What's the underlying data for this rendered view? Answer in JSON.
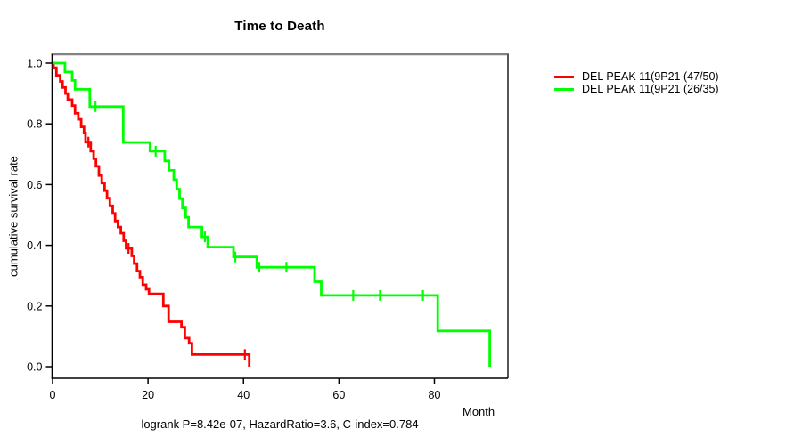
{
  "chart_data": {
    "type": "line",
    "subtype": "kaplan-meier-step-survival",
    "title": "Time to Death",
    "xlabel": "Month",
    "ylabel": "cumulative survival rate",
    "footnote": "logrank P=8.42e-07, HazardRatio=3.6, C-index=0.784",
    "stats": {
      "logrank_p": "8.42e-07",
      "hazard_ratio": "3.6",
      "c_index": "0.784"
    },
    "x_ticks": [
      0,
      20,
      40,
      60,
      80
    ],
    "y_ticks": [
      "0.0",
      "0.2",
      "0.4",
      "0.6",
      "0.8",
      "1.0"
    ],
    "xlim": [
      0,
      95.5
    ],
    "ylim": [
      0.0,
      1.0
    ],
    "grid": false,
    "legend_position": "right-outside",
    "series": [
      {
        "name": "DEL PEAK 11(9P21 (47/50)",
        "color": "#ff0000",
        "events": 47,
        "n": 50,
        "start": [
          0,
          1.0
        ],
        "drops": [
          [
            0.2,
            0.985
          ],
          [
            0.8,
            0.96
          ],
          [
            1.6,
            0.94
          ],
          [
            2.1,
            0.92
          ],
          [
            2.7,
            0.9
          ],
          [
            3.2,
            0.88
          ],
          [
            4.1,
            0.86
          ],
          [
            4.7,
            0.835
          ],
          [
            5.4,
            0.815
          ],
          [
            6.0,
            0.79
          ],
          [
            6.6,
            0.77
          ],
          [
            6.9,
            0.74
          ],
          [
            8.0,
            0.71
          ],
          [
            8.6,
            0.685
          ],
          [
            9.1,
            0.66
          ],
          [
            9.7,
            0.63
          ],
          [
            10.3,
            0.605
          ],
          [
            10.9,
            0.58
          ],
          [
            11.4,
            0.555
          ],
          [
            12.0,
            0.53
          ],
          [
            12.6,
            0.505
          ],
          [
            13.1,
            0.48
          ],
          [
            13.7,
            0.46
          ],
          [
            14.3,
            0.44
          ],
          [
            14.9,
            0.415
          ],
          [
            15.4,
            0.39
          ],
          [
            16.6,
            0.365
          ],
          [
            17.1,
            0.34
          ],
          [
            17.7,
            0.315
          ],
          [
            18.3,
            0.295
          ],
          [
            18.9,
            0.27
          ],
          [
            19.6,
            0.255
          ],
          [
            20.2,
            0.24
          ],
          [
            23.2,
            0.2
          ],
          [
            24.3,
            0.148
          ],
          [
            27.0,
            0.13
          ],
          [
            27.7,
            0.094
          ],
          [
            28.6,
            0.077
          ],
          [
            29.2,
            0.04
          ],
          [
            41.2,
            0.0
          ]
        ],
        "censors": [
          [
            7.5,
            0.74
          ],
          [
            15.9,
            0.39
          ],
          [
            40.3,
            0.04
          ]
        ]
      },
      {
        "name": "DEL PEAK 11(9P21 (26/35)",
        "color": "#00ff00",
        "events": 26,
        "n": 35,
        "start": [
          0,
          1.0
        ],
        "drops": [
          [
            2.6,
            0.971
          ],
          [
            4.1,
            0.943
          ],
          [
            4.7,
            0.914
          ],
          [
            7.8,
            0.857
          ],
          [
            14.8,
            0.739
          ],
          [
            20.4,
            0.71
          ],
          [
            23.5,
            0.678
          ],
          [
            24.4,
            0.647
          ],
          [
            25.4,
            0.616
          ],
          [
            26.0,
            0.585
          ],
          [
            26.6,
            0.554
          ],
          [
            27.2,
            0.523
          ],
          [
            27.9,
            0.492
          ],
          [
            28.5,
            0.46
          ],
          [
            31.3,
            0.428
          ],
          [
            32.5,
            0.394
          ],
          [
            37.9,
            0.362
          ],
          [
            42.8,
            0.328
          ],
          [
            54.9,
            0.28
          ],
          [
            56.3,
            0.235
          ],
          [
            80.7,
            0.118
          ],
          [
            91.6,
            0.0
          ]
        ],
        "censors": [
          [
            9.0,
            0.857
          ],
          [
            21.6,
            0.71
          ],
          [
            31.9,
            0.428
          ],
          [
            38.3,
            0.362
          ],
          [
            43.3,
            0.328
          ],
          [
            49.0,
            0.328
          ],
          [
            63.0,
            0.235
          ],
          [
            68.6,
            0.235
          ],
          [
            77.6,
            0.235
          ]
        ]
      }
    ]
  }
}
